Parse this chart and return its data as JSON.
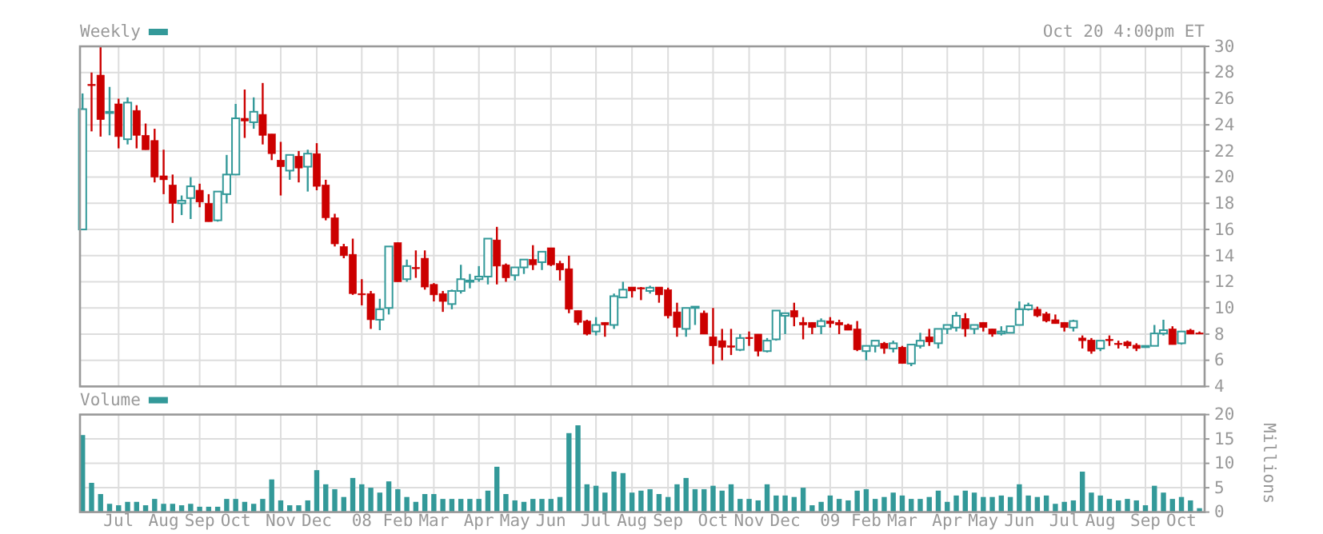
{
  "chart_data": [
    {
      "type": "candlestick",
      "title": "Weekly",
      "grid": true,
      "tick_labels": "y",
      "annotations": [
        "Oct 20 4:00pm ET"
      ],
      "x": [
        "2007-06-04",
        "2007-06-11",
        "2007-06-18",
        "2007-06-25",
        "2007-07-02",
        "2007-07-09",
        "2007-07-16",
        "2007-07-23",
        "2007-07-30",
        "2007-08-06",
        "2007-08-13",
        "2007-08-20",
        "2007-08-27",
        "2007-09-03",
        "2007-09-10",
        "2007-09-17",
        "2007-09-24",
        "2007-10-01",
        "2007-10-08",
        "2007-10-15",
        "2007-10-22",
        "2007-10-29",
        "2007-11-05",
        "2007-11-12",
        "2007-11-19",
        "2007-11-26",
        "2007-12-03",
        "2007-12-10",
        "2007-12-17",
        "2007-12-24",
        "2007-12-31",
        "2008-01-07",
        "2008-01-14",
        "2008-01-21",
        "2008-01-28",
        "2008-02-04",
        "2008-02-11",
        "2008-02-18",
        "2008-02-25",
        "2008-03-03",
        "2008-03-10",
        "2008-03-17",
        "2008-03-24",
        "2008-03-31",
        "2008-04-07",
        "2008-04-14",
        "2008-04-21",
        "2008-04-28",
        "2008-05-05",
        "2008-05-12",
        "2008-05-19",
        "2008-05-26",
        "2008-06-02",
        "2008-06-09",
        "2008-06-16",
        "2008-06-23",
        "2008-06-30",
        "2008-07-07",
        "2008-07-14",
        "2008-07-21",
        "2008-07-28",
        "2008-08-04",
        "2008-08-11",
        "2008-08-18",
        "2008-08-25",
        "2008-09-01",
        "2008-09-08",
        "2008-09-15",
        "2008-09-22",
        "2008-09-29",
        "2008-10-06",
        "2008-10-13",
        "2008-10-20",
        "2008-10-27",
        "2008-11-03",
        "2008-11-10",
        "2008-11-17",
        "2008-11-24",
        "2008-12-01",
        "2008-12-08",
        "2008-12-15",
        "2008-12-22",
        "2008-12-29",
        "2009-01-05",
        "2009-01-12",
        "2009-01-19",
        "2009-01-26",
        "2009-02-02",
        "2009-02-09",
        "2009-02-16",
        "2009-02-23",
        "2009-03-02",
        "2009-03-09",
        "2009-03-16",
        "2009-03-23",
        "2009-03-30",
        "2009-04-06",
        "2009-04-13",
        "2009-04-20",
        "2009-04-27",
        "2009-05-04",
        "2009-05-11",
        "2009-05-18",
        "2009-05-25",
        "2009-06-01",
        "2009-06-08",
        "2009-06-15",
        "2009-06-22",
        "2009-06-29",
        "2009-07-06",
        "2009-07-13",
        "2009-07-20",
        "2009-07-27",
        "2009-08-03",
        "2009-08-10",
        "2009-08-17",
        "2009-08-24",
        "2009-08-31",
        "2009-09-07",
        "2009-09-14",
        "2009-09-21",
        "2009-09-28",
        "2009-10-05",
        "2009-10-12",
        "2009-10-19"
      ],
      "ohlc": [
        [
          16.0,
          26.4,
          16.0,
          25.2
        ],
        [
          27.1,
          28.0,
          23.5,
          27.0
        ],
        [
          27.8,
          30.0,
          23.1,
          24.4
        ],
        [
          24.9,
          26.9,
          23.2,
          25.0
        ],
        [
          25.6,
          26.0,
          22.2,
          23.1
        ],
        [
          22.9,
          26.1,
          22.5,
          25.7
        ],
        [
          25.1,
          25.5,
          22.2,
          23.2
        ],
        [
          23.2,
          24.1,
          22.1,
          22.1
        ],
        [
          22.8,
          23.7,
          19.6,
          20.0
        ],
        [
          20.1,
          22.1,
          18.7,
          19.8
        ],
        [
          19.4,
          20.2,
          16.5,
          18.0
        ],
        [
          18.0,
          18.6,
          17.1,
          18.2
        ],
        [
          18.4,
          20.0,
          16.8,
          19.3
        ],
        [
          19.0,
          19.5,
          17.7,
          18.1
        ],
        [
          18.0,
          18.7,
          16.6,
          16.6
        ],
        [
          16.7,
          18.9,
          16.6,
          18.9
        ],
        [
          18.7,
          21.7,
          18.0,
          20.2
        ],
        [
          20.2,
          25.6,
          20.2,
          24.5
        ],
        [
          24.5,
          26.7,
          23.0,
          24.3
        ],
        [
          24.2,
          26.1,
          23.7,
          25.0
        ],
        [
          24.8,
          27.2,
          22.5,
          23.2
        ],
        [
          23.3,
          23.3,
          21.3,
          21.8
        ],
        [
          21.3,
          22.7,
          18.6,
          20.8
        ],
        [
          20.5,
          21.7,
          19.8,
          21.7
        ],
        [
          21.6,
          22.0,
          19.6,
          20.7
        ],
        [
          20.8,
          22.1,
          18.9,
          21.8
        ],
        [
          21.8,
          22.6,
          19.0,
          19.3
        ],
        [
          19.4,
          19.8,
          16.7,
          16.9
        ],
        [
          16.9,
          17.2,
          14.7,
          14.9
        ],
        [
          14.7,
          14.9,
          13.8,
          14.0
        ],
        [
          14.1,
          15.3,
          11.0,
          11.1
        ],
        [
          11.1,
          12.2,
          10.2,
          11.0
        ],
        [
          11.1,
          11.3,
          8.4,
          9.1
        ],
        [
          9.1,
          10.7,
          8.3,
          9.9
        ],
        [
          10.0,
          14.7,
          9.5,
          14.7
        ],
        [
          15.0,
          15.0,
          12.0,
          12.0
        ],
        [
          12.2,
          13.7,
          12.0,
          13.2
        ],
        [
          13.1,
          14.4,
          12.3,
          13.0
        ],
        [
          13.8,
          14.4,
          11.4,
          11.6
        ],
        [
          11.8,
          11.9,
          10.5,
          11.0
        ],
        [
          11.1,
          11.3,
          9.7,
          10.5
        ],
        [
          10.3,
          11.4,
          9.9,
          11.3
        ],
        [
          11.3,
          13.3,
          11.1,
          12.2
        ],
        [
          12.0,
          12.6,
          11.5,
          12.1
        ],
        [
          12.2,
          13.2,
          12.0,
          12.4
        ],
        [
          12.4,
          15.3,
          11.8,
          15.3
        ],
        [
          15.2,
          16.2,
          11.8,
          13.2
        ],
        [
          13.3,
          13.4,
          12.0,
          12.3
        ],
        [
          12.5,
          13.1,
          12.1,
          13.1
        ],
        [
          13.1,
          13.7,
          12.6,
          13.7
        ],
        [
          13.7,
          14.8,
          12.9,
          13.3
        ],
        [
          13.5,
          14.3,
          12.9,
          14.3
        ],
        [
          14.6,
          14.6,
          13.2,
          13.3
        ],
        [
          13.4,
          13.6,
          12.1,
          12.9
        ],
        [
          13.0,
          14.0,
          9.6,
          9.9
        ],
        [
          9.8,
          9.8,
          8.7,
          8.9
        ],
        [
          9.0,
          9.1,
          7.9,
          8.0
        ],
        [
          8.2,
          9.3,
          7.9,
          8.7
        ],
        [
          8.9,
          8.9,
          7.8,
          8.7
        ],
        [
          8.7,
          11.1,
          8.4,
          10.9
        ],
        [
          10.8,
          12.0,
          10.8,
          11.4
        ],
        [
          11.6,
          11.6,
          10.8,
          11.3
        ],
        [
          11.55,
          11.6,
          10.6,
          11.5
        ],
        [
          11.3,
          11.7,
          11.1,
          11.55
        ],
        [
          11.6,
          11.6,
          10.4,
          11.0
        ],
        [
          11.4,
          11.55,
          9.2,
          9.4
        ],
        [
          9.7,
          10.4,
          7.8,
          8.5
        ],
        [
          8.4,
          10.0,
          7.8,
          10.0
        ],
        [
          10.0,
          10.1,
          8.7,
          10.1
        ],
        [
          9.6,
          9.8,
          8.0,
          8.0
        ],
        [
          7.8,
          10.0,
          5.7,
          7.1
        ],
        [
          7.5,
          8.4,
          6.0,
          7.0
        ],
        [
          7.1,
          8.4,
          6.4,
          7.0
        ],
        [
          6.8,
          8.0,
          6.7,
          7.7
        ],
        [
          7.75,
          8.2,
          7.1,
          7.7
        ],
        [
          8.0,
          8.0,
          6.3,
          6.7
        ],
        [
          6.7,
          7.7,
          6.6,
          7.5
        ],
        [
          7.6,
          9.8,
          7.5,
          9.8
        ],
        [
          9.4,
          9.6,
          8.0,
          9.6
        ],
        [
          9.8,
          10.4,
          8.6,
          9.3
        ],
        [
          8.9,
          9.3,
          7.6,
          8.7
        ],
        [
          8.9,
          8.9,
          8.0,
          8.5
        ],
        [
          8.6,
          9.2,
          8.0,
          9.0
        ],
        [
          9.0,
          9.3,
          8.5,
          8.8
        ],
        [
          8.9,
          9.1,
          8.0,
          8.7
        ],
        [
          8.7,
          8.8,
          8.3,
          8.3
        ],
        [
          8.4,
          9.0,
          6.7,
          6.8
        ],
        [
          6.7,
          7.1,
          6.0,
          7.1
        ],
        [
          7.1,
          7.5,
          6.6,
          7.5
        ],
        [
          7.3,
          7.4,
          6.5,
          6.9
        ],
        [
          6.9,
          7.5,
          6.6,
          7.3
        ],
        [
          7.0,
          7.1,
          5.75,
          5.75
        ],
        [
          5.75,
          7.2,
          5.55,
          7.2
        ],
        [
          7.1,
          8.1,
          6.9,
          7.5
        ],
        [
          7.8,
          8.4,
          7.1,
          7.4
        ],
        [
          7.3,
          8.4,
          6.9,
          8.4
        ],
        [
          8.4,
          8.7,
          8.0,
          8.7
        ],
        [
          8.5,
          9.7,
          8.2,
          9.4
        ],
        [
          9.2,
          9.6,
          7.8,
          8.4
        ],
        [
          8.4,
          8.7,
          8.0,
          8.7
        ],
        [
          8.9,
          8.9,
          8.2,
          8.5
        ],
        [
          8.4,
          8.4,
          7.8,
          8.0
        ],
        [
          8.05,
          8.6,
          7.9,
          8.2
        ],
        [
          8.1,
          8.6,
          8.1,
          8.6
        ],
        [
          8.7,
          10.5,
          8.7,
          9.9
        ],
        [
          9.9,
          10.4,
          9.8,
          10.2
        ],
        [
          9.9,
          10.1,
          9.3,
          9.4
        ],
        [
          9.55,
          9.7,
          8.9,
          9.0
        ],
        [
          9.1,
          9.5,
          8.8,
          8.8
        ],
        [
          8.9,
          8.9,
          8.2,
          8.5
        ],
        [
          8.5,
          9.1,
          8.2,
          9.0
        ],
        [
          7.7,
          7.9,
          6.9,
          7.5
        ],
        [
          7.55,
          7.7,
          6.5,
          6.7
        ],
        [
          6.9,
          7.5,
          6.7,
          7.5
        ],
        [
          7.6,
          7.9,
          7.1,
          7.55
        ],
        [
          7.3,
          7.5,
          6.9,
          7.25
        ],
        [
          7.4,
          7.5,
          6.9,
          7.1
        ],
        [
          7.15,
          7.3,
          6.7,
          6.9
        ],
        [
          7.0,
          7.1,
          6.95,
          7.1
        ],
        [
          7.1,
          8.7,
          7.1,
          8.05
        ],
        [
          8.05,
          9.1,
          7.9,
          8.3
        ],
        [
          8.4,
          8.6,
          7.2,
          7.2
        ],
        [
          7.3,
          8.2,
          7.2,
          8.2
        ],
        [
          8.3,
          8.4,
          8.0,
          8.0
        ],
        [
          8.1,
          8.2,
          8.0,
          8.05
        ]
      ],
      "colors": [
        "#339999",
        "#cc0000",
        "#cc0000",
        "#339999",
        "#cc0000",
        "#339999",
        "#cc0000",
        "#cc0000",
        "#cc0000",
        "#cc0000",
        "#cc0000",
        "#339999",
        "#339999",
        "#cc0000",
        "#cc0000",
        "#339999",
        "#339999",
        "#339999",
        "#cc0000",
        "#339999",
        "#cc0000",
        "#cc0000",
        "#cc0000",
        "#339999",
        "#cc0000",
        "#339999",
        "#cc0000",
        "#cc0000",
        "#cc0000",
        "#cc0000",
        "#cc0000",
        "#cc0000",
        "#cc0000",
        "#339999",
        "#339999",
        "#cc0000",
        "#339999",
        "#cc0000",
        "#cc0000",
        "#cc0000",
        "#cc0000",
        "#339999",
        "#339999",
        "#339999",
        "#339999",
        "#339999",
        "#cc0000",
        "#cc0000",
        "#339999",
        "#339999",
        "#cc0000",
        "#339999",
        "#cc0000",
        "#cc0000",
        "#cc0000",
        "#cc0000",
        "#cc0000",
        "#339999",
        "#cc0000",
        "#339999",
        "#339999",
        "#cc0000",
        "#cc0000",
        "#339999",
        "#cc0000",
        "#cc0000",
        "#cc0000",
        "#339999",
        "#339999",
        "#cc0000",
        "#cc0000",
        "#cc0000",
        "#cc0000",
        "#339999",
        "#cc0000",
        "#cc0000",
        "#339999",
        "#339999",
        "#339999",
        "#cc0000",
        "#cc0000",
        "#cc0000",
        "#339999",
        "#cc0000",
        "#cc0000",
        "#cc0000",
        "#cc0000",
        "#339999",
        "#339999",
        "#cc0000",
        "#339999",
        "#cc0000",
        "#339999",
        "#339999",
        "#cc0000",
        "#339999",
        "#339999",
        "#339999",
        "#cc0000",
        "#339999",
        "#cc0000",
        "#cc0000",
        "#339999",
        "#339999",
        "#339999",
        "#339999",
        "#cc0000",
        "#cc0000",
        "#cc0000",
        "#cc0000",
        "#339999",
        "#cc0000",
        "#cc0000",
        "#339999",
        "#cc0000",
        "#cc0000",
        "#cc0000",
        "#cc0000",
        "#339999",
        "#339999",
        "#339999",
        "#cc0000",
        "#339999",
        "#cc0000",
        "#cc0000"
      ],
      "xlim": [
        "2007-06-02",
        "2009-10-23"
      ],
      "xticks": [
        {
          "value": "2007-07-02",
          "label": null
        },
        {
          "value": "2007-08-06",
          "label": null
        },
        {
          "value": "2007-09-03",
          "label": null
        },
        {
          "value": "2007-10-01",
          "label": null
        },
        {
          "value": "2007-11-05",
          "label": null
        },
        {
          "value": "2007-12-03",
          "label": null
        },
        {
          "value": "2008-01-07",
          "label": null
        },
        {
          "value": "2008-02-04",
          "label": null
        },
        {
          "value": "2008-03-03",
          "label": null
        },
        {
          "value": "2008-04-07",
          "label": null
        },
        {
          "value": "2008-05-05",
          "label": null
        },
        {
          "value": "2008-06-02",
          "label": null
        },
        {
          "value": "2008-07-07",
          "label": null
        },
        {
          "value": "2008-08-04",
          "label": null
        },
        {
          "value": "2008-09-01",
          "label": null
        },
        {
          "value": "2008-10-06",
          "label": null
        },
        {
          "value": "2008-11-03",
          "label": null
        },
        {
          "value": "2008-12-01",
          "label": null
        },
        {
          "value": "2009-01-05",
          "label": null
        },
        {
          "value": "2009-02-02",
          "label": null
        },
        {
          "value": "2009-03-02",
          "label": null
        },
        {
          "value": "2009-04-06",
          "label": null
        },
        {
          "value": "2009-05-04",
          "label": null
        },
        {
          "value": "2009-06-01",
          "label": null
        },
        {
          "value": "2009-07-06",
          "label": null
        },
        {
          "value": "2009-08-03",
          "label": null
        },
        {
          "value": "2009-09-07",
          "label": null
        },
        {
          "value": "2009-10-05",
          "label": null
        }
      ],
      "ylim": [
        4,
        30
      ],
      "yticks": [
        4,
        6,
        8,
        10,
        12,
        14,
        16,
        18,
        20,
        22,
        24,
        26,
        28,
        30
      ]
    },
    {
      "type": "bar",
      "legend": "top left",
      "grid": true,
      "ylabel": "Millions",
      "series": [
        {
          "name": "Volume",
          "color": "#339999",
          "values": [
            15.8,
            6.0,
            3.7,
            1.7,
            1.4,
            2.1,
            2.1,
            1.4,
            2.7,
            1.7,
            1.7,
            1.4,
            1.7,
            1.1,
            1.1,
            1.1,
            2.7,
            2.7,
            2.1,
            1.7,
            2.7,
            6.7,
            2.4,
            1.4,
            1.4,
            2.4,
            8.6,
            5.7,
            4.7,
            3.1,
            7.0,
            5.7,
            5.0,
            4.0,
            6.3,
            4.7,
            3.1,
            2.1,
            3.7,
            3.7,
            2.7,
            2.7,
            2.7,
            2.7,
            2.7,
            4.4,
            9.3,
            3.7,
            2.4,
            2.1,
            2.7,
            2.7,
            2.7,
            3.1,
            16.2,
            17.8,
            5.7,
            5.4,
            4.0,
            8.3,
            8.0,
            4.0,
            4.4,
            4.7,
            3.7,
            3.1,
            5.7,
            7.0,
            4.7,
            4.7,
            5.4,
            4.4,
            5.7,
            2.7,
            2.7,
            2.4,
            5.7,
            3.4,
            3.4,
            3.1,
            5.0,
            1.4,
            2.1,
            3.4,
            2.7,
            2.4,
            4.4,
            4.7,
            2.7,
            3.1,
            4.0,
            3.4,
            2.7,
            2.7,
            3.1,
            4.4,
            2.1,
            3.4,
            4.4,
            4.0,
            3.1,
            3.1,
            3.4,
            3.1,
            5.7,
            3.4,
            3.1,
            3.4,
            1.7,
            2.1,
            2.4,
            8.3,
            4.0,
            3.4,
            2.7,
            2.4,
            2.7,
            2.4,
            1.4,
            5.4,
            4.0,
            2.7,
            3.1,
            2.4,
            0.8
          ]
        }
      ],
      "x": [
        "2007-06-04",
        "2007-06-11",
        "2007-06-18",
        "2007-06-25",
        "2007-07-02",
        "2007-07-09",
        "2007-07-16",
        "2007-07-23",
        "2007-07-30",
        "2007-08-06",
        "2007-08-13",
        "2007-08-20",
        "2007-08-27",
        "2007-09-03",
        "2007-09-10",
        "2007-09-17",
        "2007-09-24",
        "2007-10-01",
        "2007-10-08",
        "2007-10-15",
        "2007-10-22",
        "2007-10-29",
        "2007-11-05",
        "2007-11-12",
        "2007-11-19",
        "2007-11-26",
        "2007-12-03",
        "2007-12-10",
        "2007-12-17",
        "2007-12-24",
        "2007-12-31",
        "2008-01-07",
        "2008-01-14",
        "2008-01-21",
        "2008-01-28",
        "2008-02-04",
        "2008-02-11",
        "2008-02-18",
        "2008-02-25",
        "2008-03-03",
        "2008-03-10",
        "2008-03-17",
        "2008-03-24",
        "2008-03-31",
        "2008-04-07",
        "2008-04-14",
        "2008-04-21",
        "2008-04-28",
        "2008-05-05",
        "2008-05-12",
        "2008-05-19",
        "2008-05-26",
        "2008-06-02",
        "2008-06-09",
        "2008-06-16",
        "2008-06-23",
        "2008-06-30",
        "2008-07-07",
        "2008-07-14",
        "2008-07-21",
        "2008-07-28",
        "2008-08-04",
        "2008-08-11",
        "2008-08-18",
        "2008-08-25",
        "2008-09-01",
        "2008-09-08",
        "2008-09-15",
        "2008-09-22",
        "2008-09-29",
        "2008-10-06",
        "2008-10-13",
        "2008-10-20",
        "2008-10-27",
        "2008-11-03",
        "2008-11-10",
        "2008-11-17",
        "2008-11-24",
        "2008-12-01",
        "2008-12-08",
        "2008-12-15",
        "2008-12-22",
        "2008-12-29",
        "2009-01-05",
        "2009-01-12",
        "2009-01-19",
        "2009-01-26",
        "2009-02-02",
        "2009-02-09",
        "2009-02-16",
        "2009-02-23",
        "2009-03-02",
        "2009-03-09",
        "2009-03-16",
        "2009-03-23",
        "2009-03-30",
        "2009-04-06",
        "2009-04-13",
        "2009-04-20",
        "2009-04-27",
        "2009-05-04",
        "2009-05-11",
        "2009-05-18",
        "2009-05-25",
        "2009-06-01",
        "2009-06-08",
        "2009-06-15",
        "2009-06-22",
        "2009-06-29",
        "2009-07-06",
        "2009-07-13",
        "2009-07-20",
        "2009-07-27",
        "2009-08-03",
        "2009-08-10",
        "2009-08-17",
        "2009-08-24",
        "2009-08-31",
        "2009-09-07",
        "2009-09-14",
        "2009-09-21",
        "2009-09-28",
        "2009-10-05",
        "2009-10-12",
        "2009-10-19"
      ],
      "xlim": [
        "2007-06-02",
        "2009-10-23"
      ],
      "xticks": [
        {
          "value": "2007-07-02",
          "label": "Jul"
        },
        {
          "value": "2007-08-06",
          "label": "Aug"
        },
        {
          "value": "2007-09-03",
          "label": "Sep"
        },
        {
          "value": "2007-10-01",
          "label": "Oct"
        },
        {
          "value": "2007-11-05",
          "label": "Nov"
        },
        {
          "value": "2007-12-03",
          "label": "Dec"
        },
        {
          "value": "2008-01-07",
          "label": "08"
        },
        {
          "value": "2008-02-04",
          "label": "Feb"
        },
        {
          "value": "2008-03-03",
          "label": "Mar"
        },
        {
          "value": "2008-04-07",
          "label": "Apr"
        },
        {
          "value": "2008-05-05",
          "label": "May"
        },
        {
          "value": "2008-06-02",
          "label": "Jun"
        },
        {
          "value": "2008-07-07",
          "label": "Jul"
        },
        {
          "value": "2008-08-04",
          "label": "Aug"
        },
        {
          "value": "2008-09-01",
          "label": "Sep"
        },
        {
          "value": "2008-10-06",
          "label": "Oct"
        },
        {
          "value": "2008-11-03",
          "label": "Nov"
        },
        {
          "value": "2008-12-01",
          "label": "Dec"
        },
        {
          "value": "2009-01-05",
          "label": "09"
        },
        {
          "value": "2009-02-02",
          "label": "Feb"
        },
        {
          "value": "2009-03-02",
          "label": "Mar"
        },
        {
          "value": "2009-04-06",
          "label": "Apr"
        },
        {
          "value": "2009-05-04",
          "label": "May"
        },
        {
          "value": "2009-06-01",
          "label": "Jun"
        },
        {
          "value": "2009-07-06",
          "label": "Jul"
        },
        {
          "value": "2009-08-03",
          "label": "Aug"
        },
        {
          "value": "2009-09-07",
          "label": "Sep"
        },
        {
          "value": "2009-10-05",
          "label": "Oct"
        }
      ],
      "ylim": [
        0,
        20
      ],
      "yticks": [
        0,
        5,
        10,
        15,
        20
      ]
    }
  ]
}
